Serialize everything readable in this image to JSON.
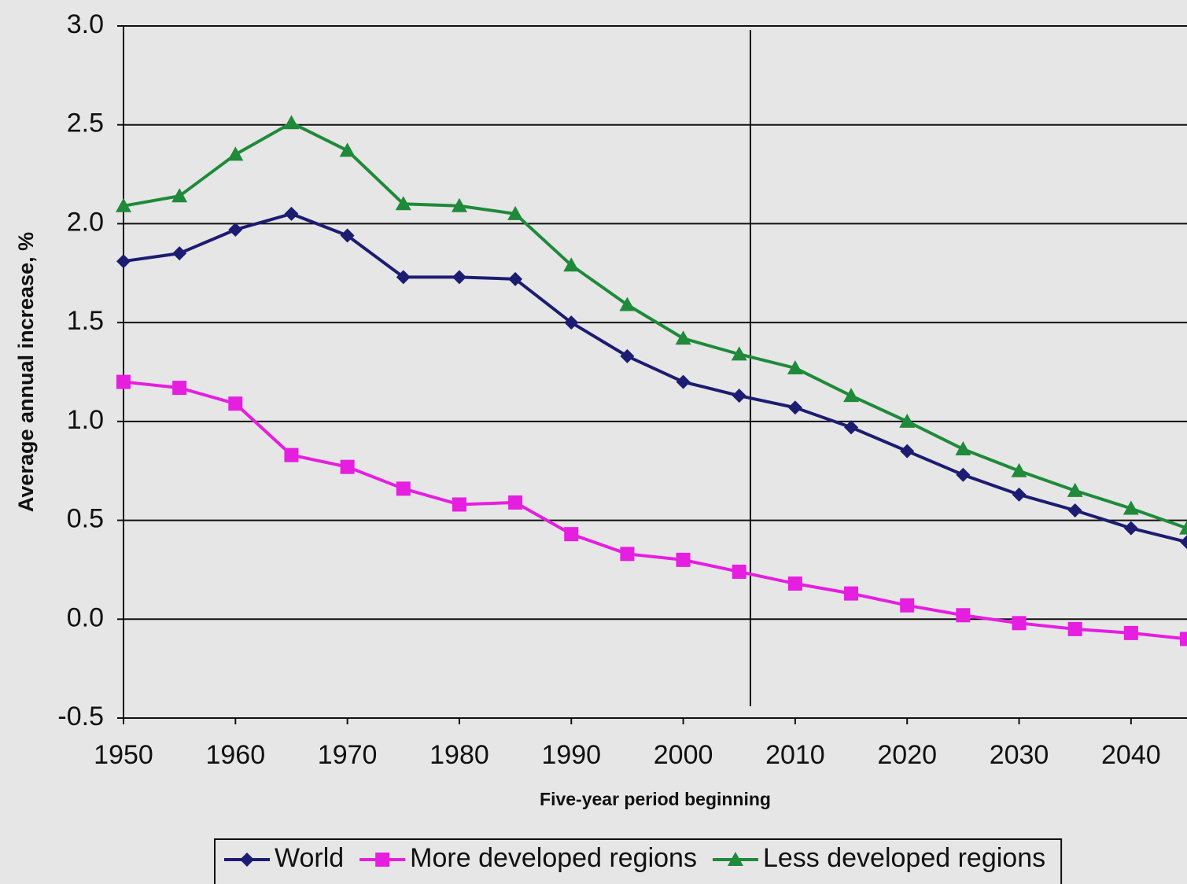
{
  "chart_data": {
    "type": "line",
    "y_label": "Average annual increase, %",
    "x_label": "Five-year period beginning",
    "x": [
      1950,
      1955,
      1960,
      1965,
      1970,
      1975,
      1980,
      1985,
      1990,
      1995,
      2000,
      2005,
      2010,
      2015,
      2020,
      2025,
      2030,
      2035,
      2040,
      2045
    ],
    "series": [
      {
        "name": "World",
        "color": "#1c1c72",
        "marker": "diamond",
        "values": [
          1.81,
          1.85,
          1.97,
          2.05,
          1.94,
          1.73,
          1.73,
          1.72,
          1.5,
          1.33,
          1.2,
          1.13,
          1.07,
          0.97,
          0.85,
          0.73,
          0.63,
          0.55,
          0.46,
          0.39
        ]
      },
      {
        "name": "More developed regions",
        "color": "#e61ee0",
        "marker": "square",
        "values": [
          1.2,
          1.17,
          1.09,
          0.83,
          0.77,
          0.66,
          0.58,
          0.59,
          0.43,
          0.33,
          0.3,
          0.24,
          0.18,
          0.13,
          0.07,
          0.02,
          -0.02,
          -0.05,
          -0.07,
          -0.1
        ]
      },
      {
        "name": "Less developed regions",
        "color": "#1f8a3a",
        "marker": "triangle",
        "values": [
          2.09,
          2.14,
          2.35,
          2.51,
          2.37,
          2.1,
          2.09,
          2.05,
          1.79,
          1.59,
          1.42,
          1.34,
          1.27,
          1.13,
          1.0,
          0.86,
          0.75,
          0.65,
          0.56,
          0.46
        ]
      }
    ],
    "xlim": [
      1950,
      2045
    ],
    "xticks": [
      1950,
      1960,
      1970,
      1980,
      1990,
      2000,
      2010,
      2020,
      2030,
      2040
    ],
    "ylim": [
      -0.5,
      3.0
    ],
    "yticks": [
      {
        "value": -0.5,
        "label": "-0.5"
      },
      {
        "value": 0,
        "label": "0.0"
      },
      {
        "value": 0.5,
        "label": "0.5"
      },
      {
        "value": 1,
        "label": "1.0"
      },
      {
        "value": 1.5,
        "label": "1.5"
      },
      {
        "value": 2,
        "label": "2.0"
      },
      {
        "value": 2.5,
        "label": "2.5"
      },
      {
        "value": 3,
        "label": "3.0"
      }
    ],
    "vline": 2006,
    "grid": true,
    "legend": "bottom"
  }
}
